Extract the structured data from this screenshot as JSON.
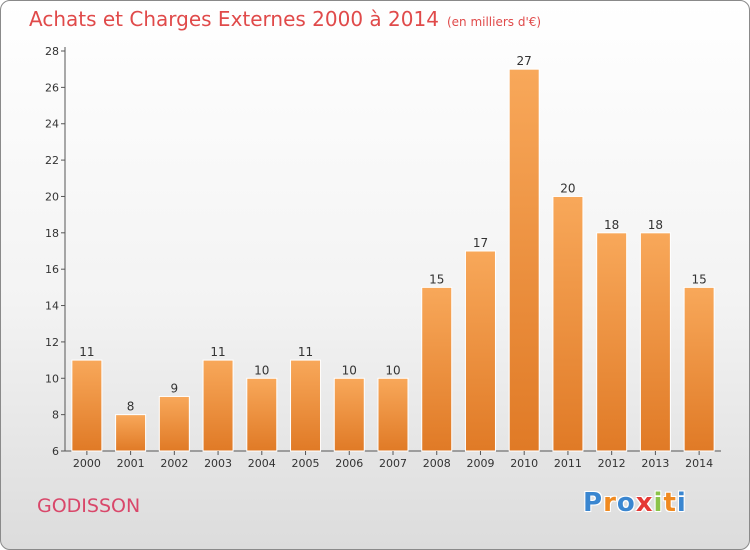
{
  "chart_data": {
    "type": "bar",
    "title": "Achats et Charges Externes 2000 à 2014",
    "unit_label": "(en milliers d'€)",
    "categories": [
      "2000",
      "2001",
      "2002",
      "2003",
      "2004",
      "2005",
      "2006",
      "2007",
      "2008",
      "2009",
      "2010",
      "2011",
      "2012",
      "2013",
      "2014"
    ],
    "values": [
      11,
      8,
      9,
      11,
      10,
      11,
      10,
      10,
      15,
      17,
      27,
      20,
      18,
      18,
      15
    ],
    "ylim": [
      6,
      28
    ],
    "yticks": [
      6,
      8,
      10,
      12,
      14,
      16,
      18,
      20,
      22,
      24,
      26,
      28
    ],
    "grid": false,
    "bar_color": "#f0903a",
    "bar_color_light": "#f8a85a",
    "bar_color_dark": "#e07a26"
  },
  "footer": {
    "town": "GODISSON",
    "logo": [
      "P",
      "r",
      "o",
      "x",
      "i",
      "t",
      "i"
    ]
  },
  "colors": {
    "title": "#e04a4a",
    "town": "#d9476a",
    "logo": [
      "#3a86d0",
      "#f08a20",
      "#3a86d0",
      "#e53935",
      "#8bc34a",
      "#f08a20",
      "#3a86d0"
    ]
  }
}
